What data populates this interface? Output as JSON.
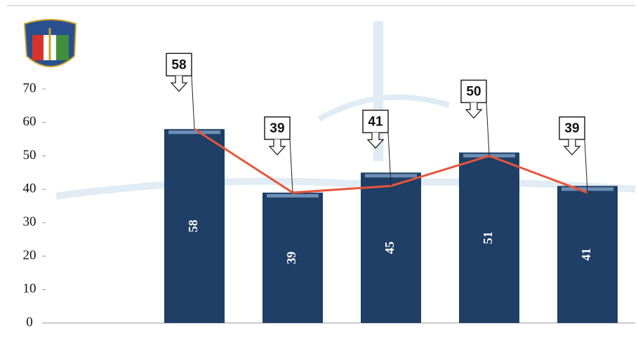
{
  "chart_data": {
    "type": "bar",
    "categories": [
      null,
      null,
      null,
      null,
      null,
      null
    ],
    "series": [
      {
        "type": "bar",
        "color": "#1f3f66",
        "values": [
          null,
          58,
          39,
          45,
          51,
          41
        ]
      },
      {
        "type": "line",
        "color": "#e8553a",
        "values": [
          null,
          58,
          39,
          41,
          50,
          39
        ]
      }
    ],
    "ylim": [
      0,
      70
    ],
    "yticks": [
      0,
      10,
      20,
      30,
      40,
      50,
      60,
      70
    ]
  }
}
